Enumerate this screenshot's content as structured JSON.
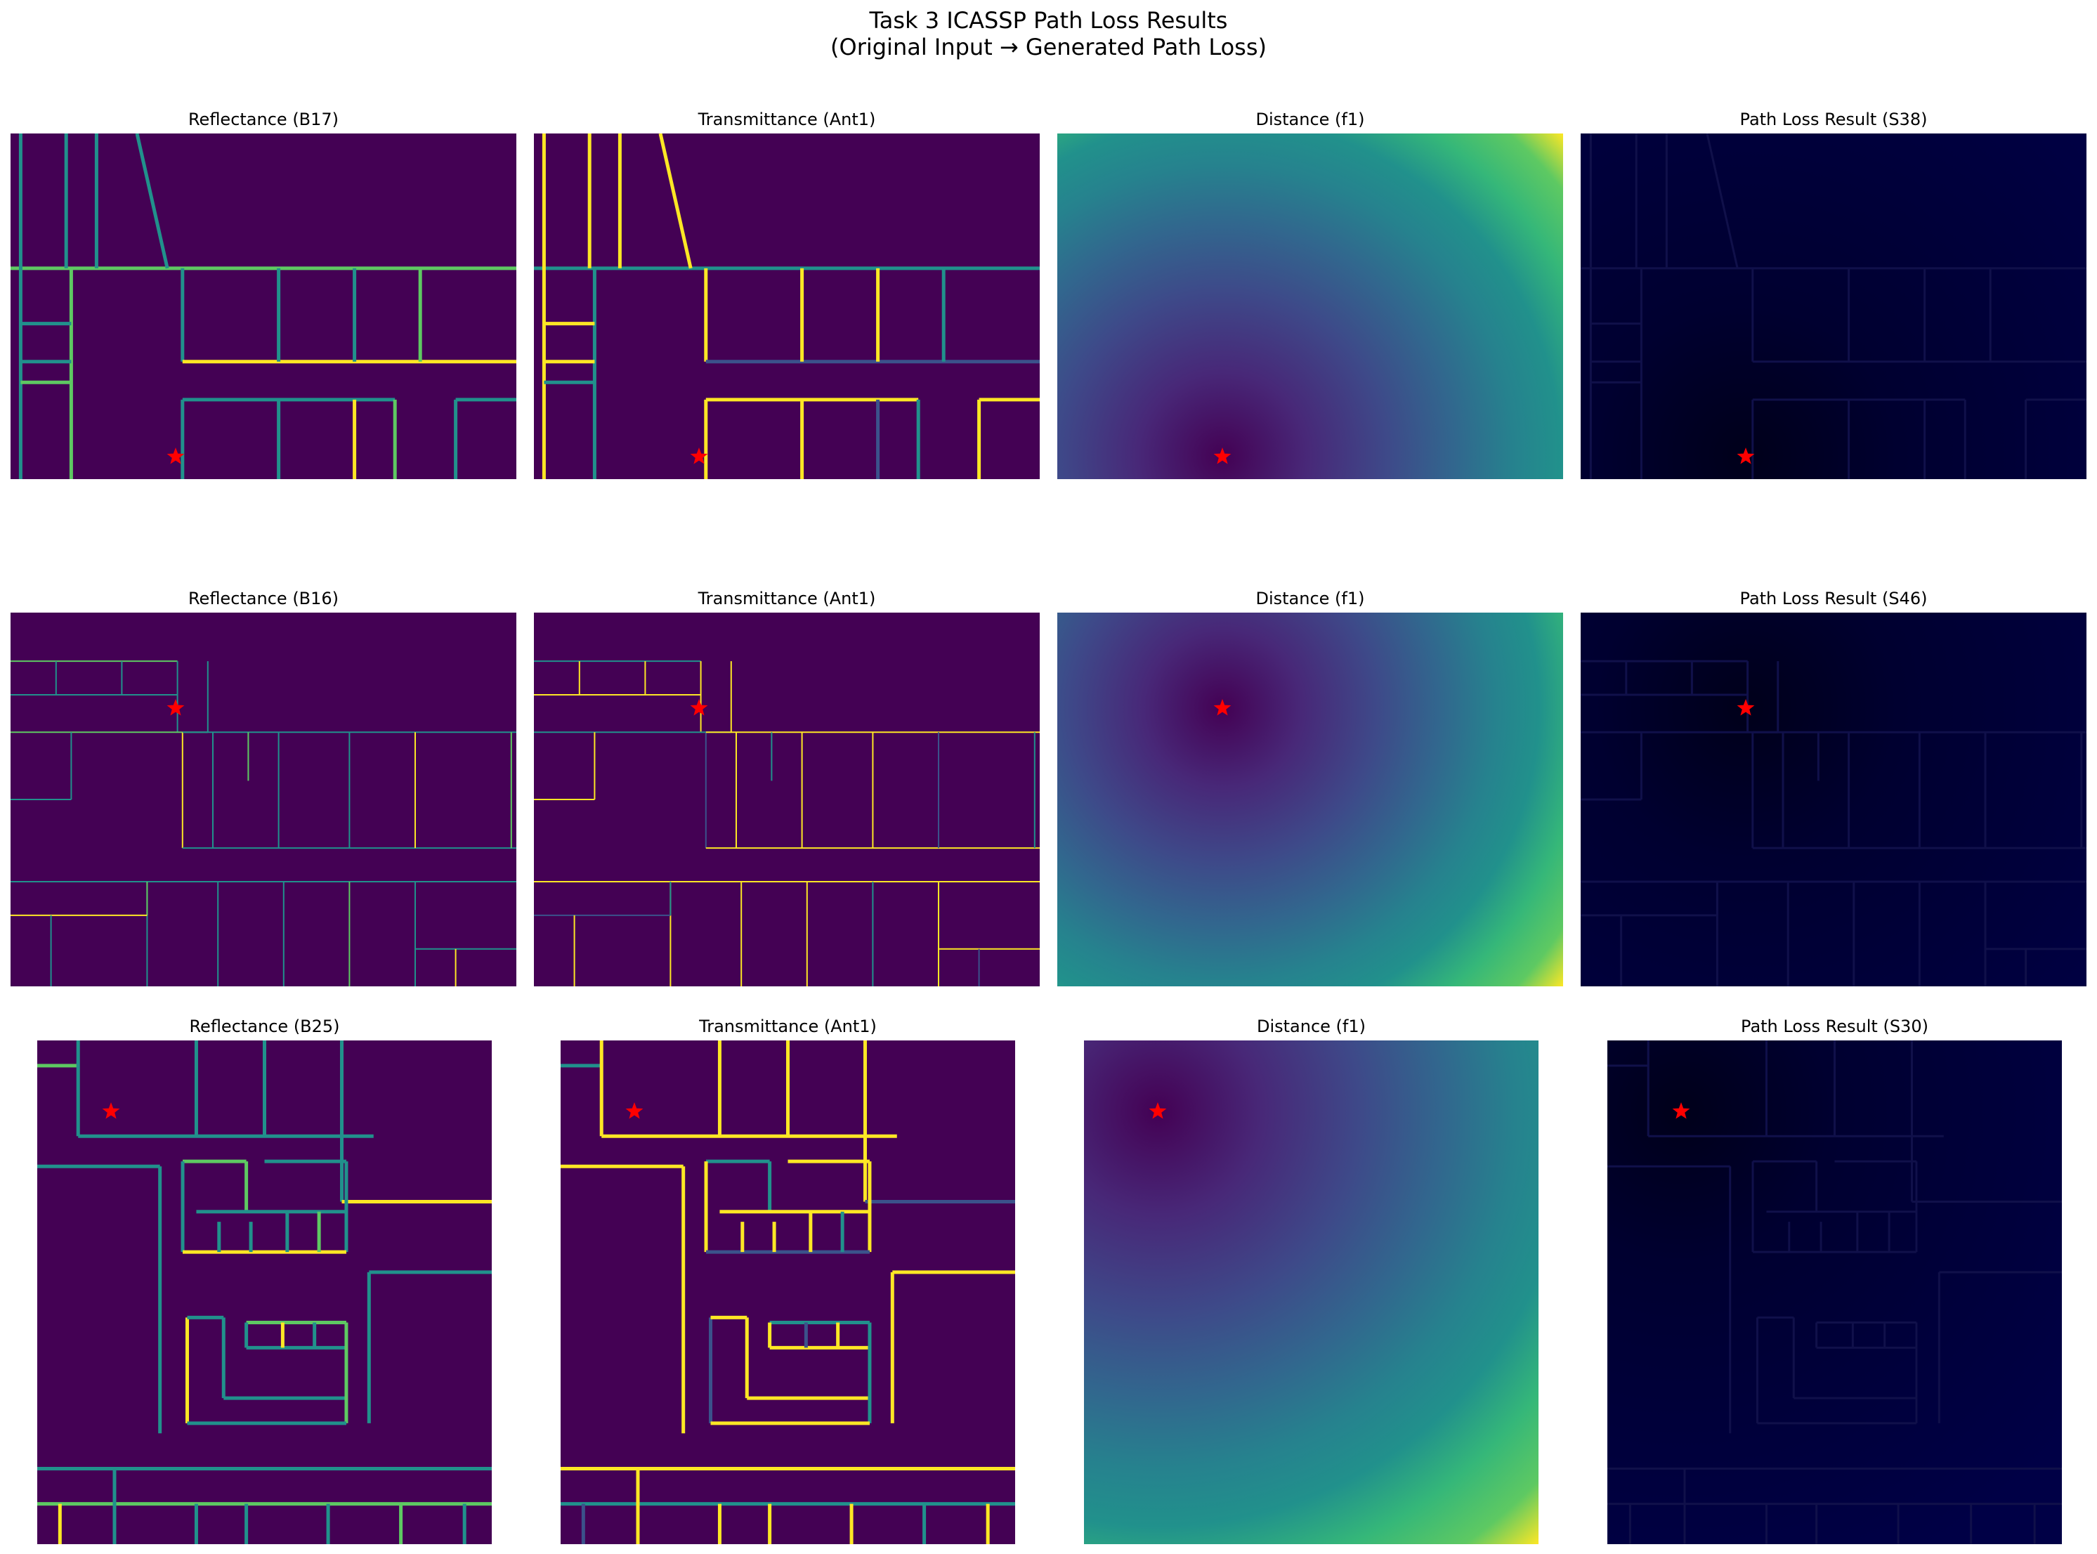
{
  "figure": {
    "title_line1": "Task 3 ICASSP Path Loss Results",
    "title_line2": "(Original Input → Generated Path Loss)"
  },
  "colors": {
    "viridis_dark": "#440154",
    "viridis_teal": "#21918c",
    "viridis_green": "#5ec962",
    "viridis_yellow": "#fde725",
    "pathloss_bg": "#000033",
    "marker": "#ff0000"
  },
  "marker_icon": "red-star-icon",
  "rows": [
    {
      "panels": [
        {
          "title": "Reflectance (B17)",
          "kind": "reflectance"
        },
        {
          "title": "Transmittance (Ant1)",
          "kind": "transmittance"
        },
        {
          "title": "Distance (f1)",
          "kind": "distance"
        },
        {
          "title": "Path Loss Result (S38)",
          "kind": "pathloss"
        }
      ]
    },
    {
      "panels": [
        {
          "title": "Reflectance (B16)",
          "kind": "reflectance"
        },
        {
          "title": "Transmittance (Ant1)",
          "kind": "transmittance"
        },
        {
          "title": "Distance (f1)",
          "kind": "distance"
        },
        {
          "title": "Path Loss Result (S46)",
          "kind": "pathloss"
        }
      ]
    },
    {
      "panels": [
        {
          "title": "Reflectance (B25)",
          "kind": "reflectance"
        },
        {
          "title": "Transmittance (Ant1)",
          "kind": "transmittance"
        },
        {
          "title": "Distance (f1)",
          "kind": "distance"
        },
        {
          "title": "Path Loss Result (S30)",
          "kind": "pathloss"
        }
      ]
    }
  ]
}
